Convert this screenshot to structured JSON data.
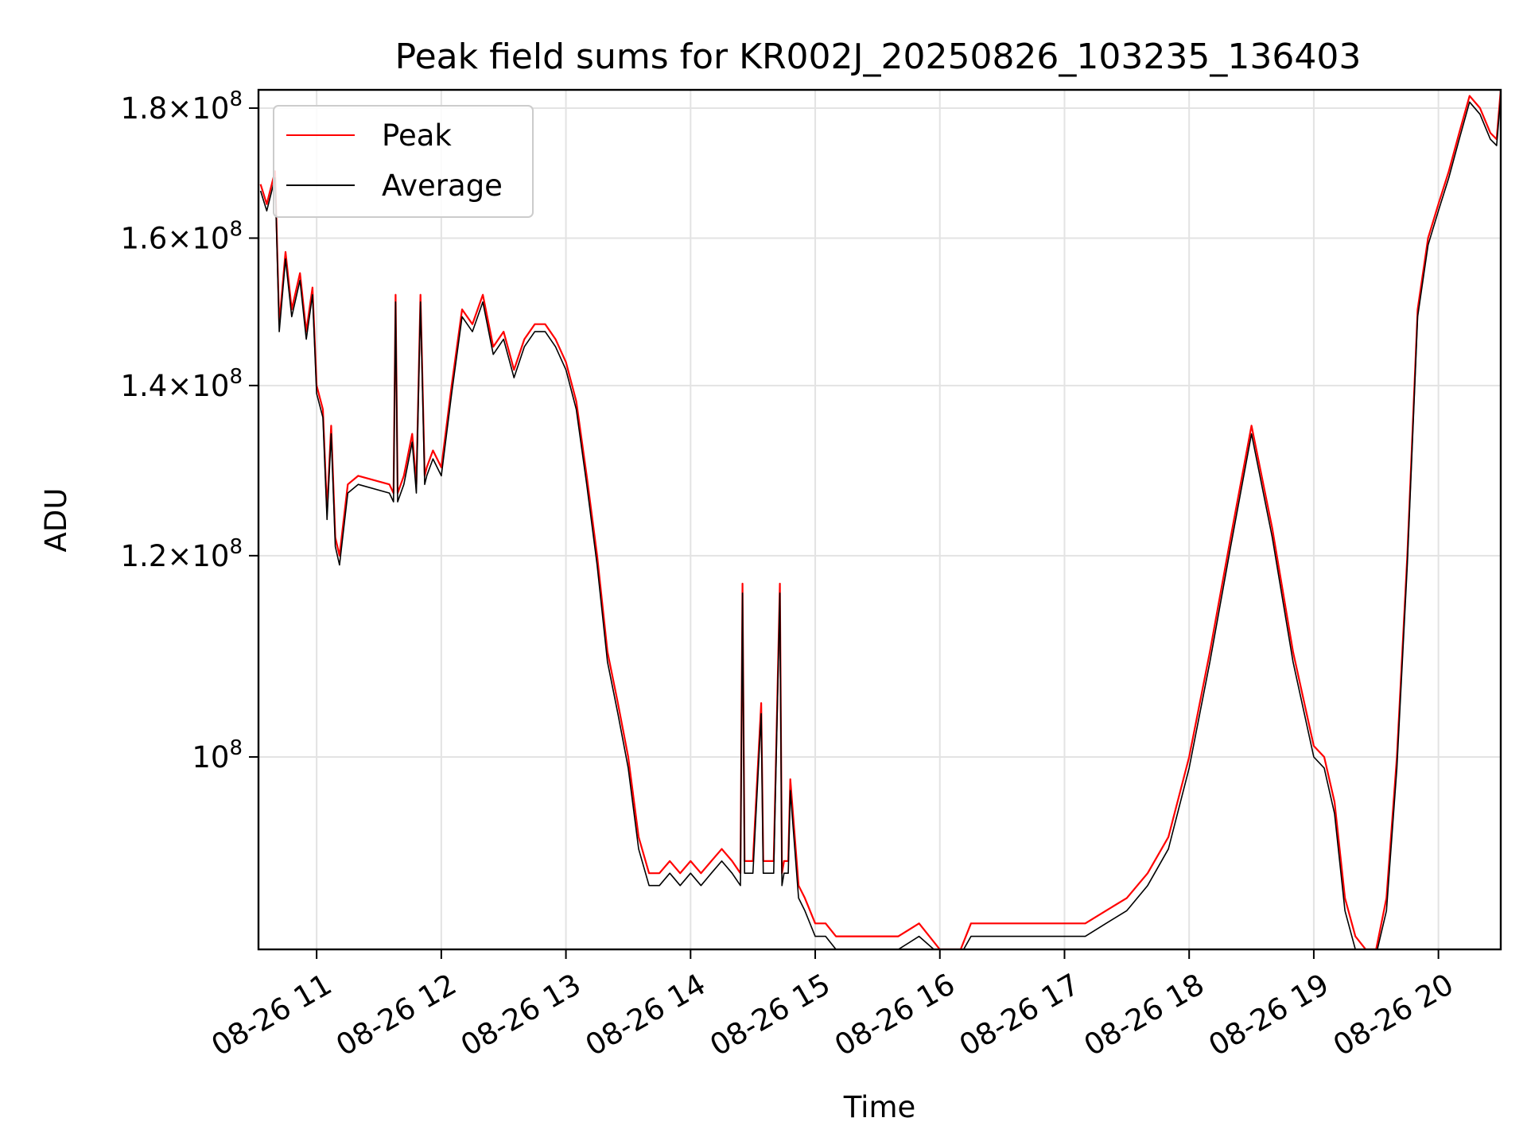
{
  "chart_data": {
    "type": "line",
    "title": "Peak field sums for KR002J_20250826_103235_136403",
    "xlabel": "Time",
    "ylabel": "ADU",
    "yscale": "log",
    "xlim": [
      "08-26 10:32",
      "08-26 20:30"
    ],
    "ylim": [
      84000000,
      183000000
    ],
    "grid": true,
    "legend_position": "upper-left",
    "x_tick_labels": [
      "08-26 11",
      "08-26 12",
      "08-26 13",
      "08-26 14",
      "08-26 15",
      "08-26 16",
      "08-26 17",
      "08-26 18",
      "08-26 19",
      "08-26 20"
    ],
    "y_ticks": [
      {
        "value": 100000000,
        "mantissa": "",
        "base": "10",
        "exponent": "8"
      },
      {
        "value": 120000000,
        "mantissa": "1.2",
        "base": "10",
        "exponent": "8"
      },
      {
        "value": 140000000,
        "mantissa": "1.4",
        "base": "10",
        "exponent": "8"
      },
      {
        "value": 160000000,
        "mantissa": "1.6",
        "base": "10",
        "exponent": "8"
      },
      {
        "value": 180000000,
        "mantissa": "1.8",
        "base": "10",
        "exponent": "8"
      }
    ],
    "x": [
      "10:33",
      "10:36",
      "10:40",
      "10:42",
      "10:45",
      "10:48",
      "10:52",
      "10:55",
      "10:58",
      "11:00",
      "11:03",
      "11:05",
      "11:07",
      "11:09",
      "11:11",
      "11:15",
      "11:20",
      "11:35",
      "11:37",
      "11:38",
      "11:39",
      "11:42",
      "11:46",
      "11:48",
      "11:50",
      "11:52",
      "11:53",
      "11:56",
      "12:00",
      "12:05",
      "12:10",
      "12:15",
      "12:20",
      "12:25",
      "12:30",
      "12:35",
      "12:40",
      "12:45",
      "12:50",
      "12:55",
      "13:00",
      "13:05",
      "13:10",
      "13:15",
      "13:20",
      "13:25",
      "13:30",
      "13:35",
      "13:40",
      "13:45",
      "13:50",
      "13:55",
      "14:00",
      "14:05",
      "14:10",
      "14:15",
      "14:20",
      "14:24",
      "14:25",
      "14:26",
      "14:30",
      "14:34",
      "14:35",
      "14:36",
      "14:40",
      "14:43",
      "14:44",
      "14:45",
      "14:47",
      "14:48",
      "14:52",
      "14:55",
      "15:00",
      "15:05",
      "15:10",
      "15:20",
      "15:30",
      "15:40",
      "15:50",
      "16:00",
      "16:10",
      "16:15",
      "16:20",
      "16:30",
      "16:40",
      "16:50",
      "17:00",
      "17:10",
      "17:20",
      "17:30",
      "17:40",
      "17:50",
      "18:00",
      "18:10",
      "18:20",
      "18:30",
      "18:40",
      "18:50",
      "19:00",
      "19:05",
      "19:10",
      "19:15",
      "19:20",
      "19:25",
      "19:30",
      "19:35",
      "19:40",
      "19:45",
      "19:50",
      "19:55",
      "20:00",
      "20:05",
      "20:10",
      "20:15",
      "20:20",
      "20:25",
      "20:28",
      "20:30"
    ],
    "series": [
      {
        "name": "Peak",
        "color": "#ff0000",
        "values": [
          168,
          165,
          170,
          148,
          158,
          150,
          155,
          147,
          153,
          140,
          137,
          125,
          135,
          122,
          120,
          128,
          129,
          128,
          127,
          152,
          127,
          129,
          134,
          128,
          152,
          129,
          130,
          132,
          130,
          140,
          150,
          148,
          152,
          145,
          147,
          142,
          146,
          148,
          148,
          146,
          143,
          138,
          129,
          120,
          110,
          105,
          100,
          93,
          90,
          90,
          91,
          90,
          91,
          90,
          91,
          92,
          91,
          90,
          117,
          91,
          91,
          105,
          91,
          91,
          91,
          117,
          90,
          91,
          91,
          98,
          89,
          88,
          86,
          86,
          85,
          85,
          85,
          85,
          86,
          84,
          84,
          86,
          86,
          86,
          86,
          86,
          86,
          86,
          87,
          88,
          90,
          93,
          100,
          110,
          122,
          135,
          123,
          110,
          101,
          100,
          96,
          88,
          85,
          84,
          84,
          88,
          100,
          120,
          150,
          160,
          165,
          170,
          176,
          182,
          180,
          176,
          175,
          183
        ],
        "values_unit": "1e6 ADU"
      },
      {
        "name": "Average",
        "color": "#000000",
        "values": [
          167,
          164,
          169,
          147,
          157,
          149,
          154,
          146,
          152,
          139,
          136,
          124,
          134,
          121,
          119,
          127,
          128,
          127,
          126,
          151,
          126,
          128,
          133,
          127,
          151,
          128,
          129,
          131,
          129,
          139,
          149,
          147,
          151,
          144,
          146,
          141,
          145,
          147,
          147,
          145,
          142,
          137,
          128,
          119,
          109,
          104,
          99,
          92,
          89,
          89,
          90,
          89,
          90,
          89,
          90,
          91,
          90,
          89,
          116,
          90,
          90,
          104,
          90,
          90,
          90,
          116,
          89,
          90,
          90,
          97,
          88,
          87,
          85,
          85,
          84,
          84,
          84,
          84,
          85,
          83.6,
          83.6,
          85,
          85,
          85,
          85,
          85,
          85,
          85,
          86,
          87,
          89,
          92,
          99,
          109,
          121,
          134,
          122,
          109,
          100,
          99,
          95,
          87,
          84,
          83.6,
          83.6,
          87,
          99,
          119,
          149,
          159,
          164,
          169,
          175,
          181,
          179,
          175,
          174,
          182
        ],
        "values_unit": "1e6 ADU"
      }
    ]
  }
}
